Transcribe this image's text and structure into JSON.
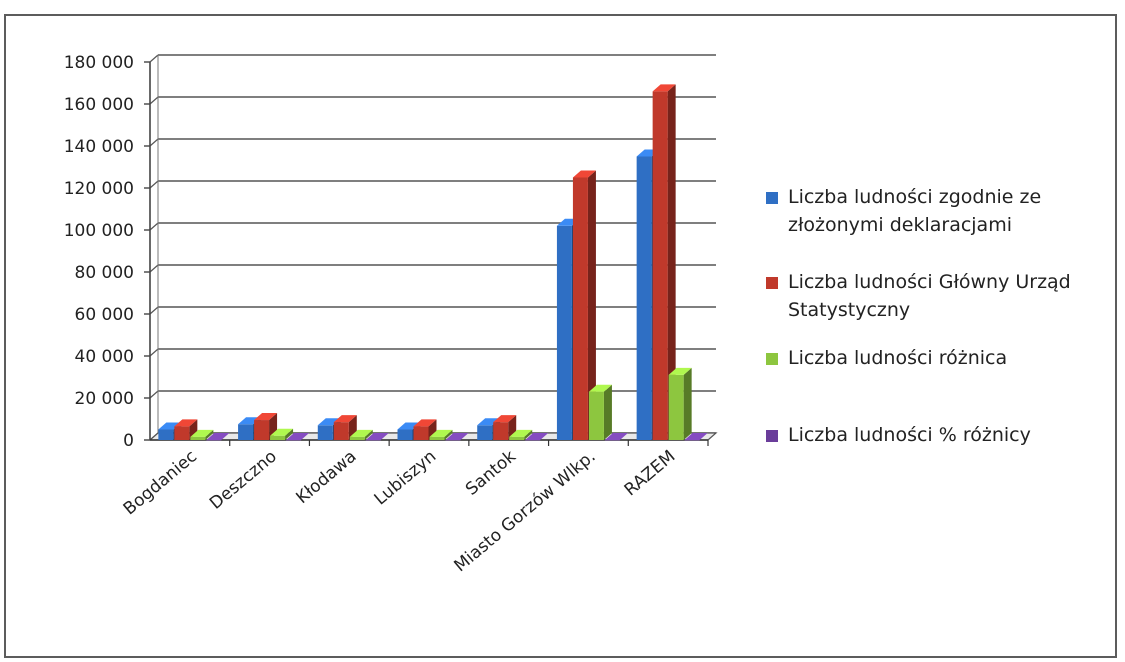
{
  "chart_data": {
    "type": "bar",
    "title": "",
    "xlabel": "",
    "ylabel": "",
    "ylim": [
      0,
      180000
    ],
    "yticks": [
      0,
      20000,
      40000,
      60000,
      80000,
      100000,
      120000,
      140000,
      160000,
      180000
    ],
    "ytick_labels": [
      "0",
      "20 000",
      "40 000",
      "60 000",
      "80 000",
      "100 000",
      "120 000",
      "140 000",
      "160 000",
      "180 000"
    ],
    "grid": true,
    "legend_position": "right",
    "categories": [
      "Bogdaniec",
      "Deszczno",
      "Kłodawa",
      "Lubiszyn",
      "Santok",
      "Miasto Gorzów Wlkp.",
      "RAZEM"
    ],
    "series": [
      {
        "name": "Liczba ludności zgodnie ze złożonymi deklaracjami",
        "legend_lines": [
          "Liczba ludności zgodnie ze",
          "złożonymi deklaracjami"
        ],
        "color": "#2f6fc4",
        "values": [
          5000,
          7500,
          7000,
          5000,
          7000,
          102000,
          135000
        ]
      },
      {
        "name": "Liczba ludności Główny Urząd Statystyczny",
        "legend_lines": [
          "Liczba ludności Główny Urząd",
          "Statystyczny"
        ],
        "color": "#c0392b",
        "values": [
          6500,
          9500,
          8500,
          6500,
          8500,
          125000,
          166000
        ]
      },
      {
        "name": "Liczba ludności różnica",
        "legend_lines": [
          "Liczba ludności różnica"
        ],
        "color": "#8dc63f",
        "values": [
          1500,
          2000,
          1500,
          1500,
          1500,
          23000,
          31000
        ]
      },
      {
        "name": "Liczba ludności % różnicy",
        "legend_lines": [
          "Liczba ludności % różnicy"
        ],
        "color": "#6a3d9a",
        "values": [
          20,
          25,
          20,
          25,
          20,
          20,
          20
        ]
      }
    ]
  }
}
